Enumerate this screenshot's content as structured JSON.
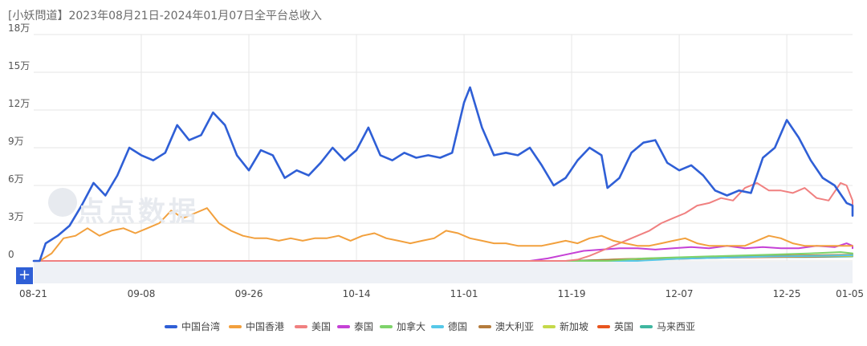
{
  "title": "[小妖問道】2023年08月21日-2024年01月07日全平台总收入",
  "watermark": "点点数据",
  "zoom_button": "+",
  "colors": {
    "grid": "#e6e6e6",
    "navigator_bg": "#eef1f6"
  },
  "chart_data": {
    "type": "line",
    "title": "[小妖問道】2023年08月21日-2024年01月07日全平台总收入",
    "xlabel": "",
    "ylabel": "",
    "x_start": "2023-08-21",
    "x_end": "2024-01-05",
    "ylim": [
      0,
      180000
    ],
    "y_ticks": [
      0,
      30000,
      60000,
      90000,
      120000,
      150000,
      180000
    ],
    "y_tick_labels": [
      "0",
      "3万",
      "6万",
      "9万",
      "12万",
      "15万",
      "18万"
    ],
    "x_ticks": [
      "2023-08-21",
      "2023-09-08",
      "2023-09-26",
      "2023-10-14",
      "2023-11-01",
      "2023-11-19",
      "2023-12-07",
      "2023-12-25",
      "2024-01-05"
    ],
    "x_tick_labels": [
      "08-21",
      "09-08",
      "09-26",
      "10-14",
      "11-01",
      "11-19",
      "12-07",
      "12-25",
      "01-05"
    ],
    "grid": true,
    "legend_position": "bottom",
    "series": [
      {
        "name": "中国台湾",
        "color": "#2f5fd6",
        "points": [
          [
            "2023-08-21",
            0
          ],
          [
            "2023-08-22",
            0
          ],
          [
            "2023-08-23",
            14000
          ],
          [
            "2023-08-25",
            20000
          ],
          [
            "2023-08-27",
            28000
          ],
          [
            "2023-08-29",
            44000
          ],
          [
            "2023-08-31",
            62000
          ],
          [
            "2023-09-02",
            52000
          ],
          [
            "2023-09-04",
            68000
          ],
          [
            "2023-09-06",
            90000
          ],
          [
            "2023-09-08",
            84000
          ],
          [
            "2023-09-10",
            80000
          ],
          [
            "2023-09-12",
            86000
          ],
          [
            "2023-09-14",
            108000
          ],
          [
            "2023-09-16",
            96000
          ],
          [
            "2023-09-18",
            100000
          ],
          [
            "2023-09-20",
            118000
          ],
          [
            "2023-09-22",
            108000
          ],
          [
            "2023-09-24",
            84000
          ],
          [
            "2023-09-26",
            72000
          ],
          [
            "2023-09-28",
            88000
          ],
          [
            "2023-09-30",
            84000
          ],
          [
            "2023-10-02",
            66000
          ],
          [
            "2023-10-04",
            72000
          ],
          [
            "2023-10-06",
            68000
          ],
          [
            "2023-10-08",
            78000
          ],
          [
            "2023-10-10",
            90000
          ],
          [
            "2023-10-12",
            80000
          ],
          [
            "2023-10-14",
            88000
          ],
          [
            "2023-10-16",
            106000
          ],
          [
            "2023-10-18",
            84000
          ],
          [
            "2023-10-20",
            80000
          ],
          [
            "2023-10-22",
            86000
          ],
          [
            "2023-10-24",
            82000
          ],
          [
            "2023-10-26",
            84000
          ],
          [
            "2023-10-28",
            82000
          ],
          [
            "2023-10-30",
            86000
          ],
          [
            "2023-11-01",
            126000
          ],
          [
            "2023-11-02",
            138000
          ],
          [
            "2023-11-04",
            106000
          ],
          [
            "2023-11-06",
            84000
          ],
          [
            "2023-11-08",
            86000
          ],
          [
            "2023-11-10",
            84000
          ],
          [
            "2023-11-12",
            90000
          ],
          [
            "2023-11-14",
            76000
          ],
          [
            "2023-11-16",
            60000
          ],
          [
            "2023-11-18",
            66000
          ],
          [
            "2023-11-20",
            80000
          ],
          [
            "2023-11-22",
            90000
          ],
          [
            "2023-11-24",
            84000
          ],
          [
            "2023-11-25",
            58000
          ],
          [
            "2023-11-27",
            66000
          ],
          [
            "2023-11-29",
            86000
          ],
          [
            "2023-12-01",
            94000
          ],
          [
            "2023-12-03",
            96000
          ],
          [
            "2023-12-05",
            78000
          ],
          [
            "2023-12-07",
            72000
          ],
          [
            "2023-12-09",
            76000
          ],
          [
            "2023-12-11",
            68000
          ],
          [
            "2023-12-13",
            56000
          ],
          [
            "2023-12-15",
            52000
          ],
          [
            "2023-12-17",
            56000
          ],
          [
            "2023-12-19",
            54000
          ],
          [
            "2023-12-21",
            82000
          ],
          [
            "2023-12-23",
            90000
          ],
          [
            "2023-12-25",
            112000
          ],
          [
            "2023-12-27",
            98000
          ],
          [
            "2023-12-29",
            80000
          ],
          [
            "2023-12-31",
            66000
          ],
          [
            "2024-01-02",
            60000
          ],
          [
            "2024-01-04",
            46000
          ],
          [
            "2024-01-05",
            44000
          ],
          [
            "2024-01-06",
            42000
          ],
          [
            "2024-01-07",
            36000
          ]
        ]
      },
      {
        "name": "中国香港",
        "color": "#f2a03d",
        "points": [
          [
            "2023-08-21",
            0
          ],
          [
            "2023-08-22",
            0
          ],
          [
            "2023-08-24",
            6000
          ],
          [
            "2023-08-26",
            18000
          ],
          [
            "2023-08-28",
            20000
          ],
          [
            "2023-08-30",
            26000
          ],
          [
            "2023-09-01",
            20000
          ],
          [
            "2023-09-03",
            24000
          ],
          [
            "2023-09-05",
            26000
          ],
          [
            "2023-09-07",
            22000
          ],
          [
            "2023-09-09",
            26000
          ],
          [
            "2023-09-11",
            30000
          ],
          [
            "2023-09-13",
            40000
          ],
          [
            "2023-09-15",
            34000
          ],
          [
            "2023-09-17",
            38000
          ],
          [
            "2023-09-19",
            42000
          ],
          [
            "2023-09-21",
            30000
          ],
          [
            "2023-09-23",
            24000
          ],
          [
            "2023-09-25",
            20000
          ],
          [
            "2023-09-27",
            18000
          ],
          [
            "2023-09-29",
            18000
          ],
          [
            "2023-10-01",
            16000
          ],
          [
            "2023-10-03",
            18000
          ],
          [
            "2023-10-05",
            16000
          ],
          [
            "2023-10-07",
            18000
          ],
          [
            "2023-10-09",
            18000
          ],
          [
            "2023-10-11",
            20000
          ],
          [
            "2023-10-13",
            16000
          ],
          [
            "2023-10-15",
            20000
          ],
          [
            "2023-10-17",
            22000
          ],
          [
            "2023-10-19",
            18000
          ],
          [
            "2023-10-21",
            16000
          ],
          [
            "2023-10-23",
            14000
          ],
          [
            "2023-10-25",
            16000
          ],
          [
            "2023-10-27",
            18000
          ],
          [
            "2023-10-29",
            24000
          ],
          [
            "2023-10-31",
            22000
          ],
          [
            "2023-11-02",
            18000
          ],
          [
            "2023-11-04",
            16000
          ],
          [
            "2023-11-06",
            14000
          ],
          [
            "2023-11-08",
            14000
          ],
          [
            "2023-11-10",
            12000
          ],
          [
            "2023-11-12",
            12000
          ],
          [
            "2023-11-14",
            12000
          ],
          [
            "2023-11-16",
            14000
          ],
          [
            "2023-11-18",
            16000
          ],
          [
            "2023-11-20",
            14000
          ],
          [
            "2023-11-22",
            18000
          ],
          [
            "2023-11-24",
            20000
          ],
          [
            "2023-11-26",
            16000
          ],
          [
            "2023-11-28",
            14000
          ],
          [
            "2023-11-30",
            12000
          ],
          [
            "2023-12-02",
            12000
          ],
          [
            "2023-12-04",
            14000
          ],
          [
            "2023-12-06",
            16000
          ],
          [
            "2023-12-08",
            18000
          ],
          [
            "2023-12-10",
            14000
          ],
          [
            "2023-12-12",
            12000
          ],
          [
            "2023-12-14",
            12000
          ],
          [
            "2023-12-16",
            12000
          ],
          [
            "2023-12-18",
            12000
          ],
          [
            "2023-12-20",
            16000
          ],
          [
            "2023-12-22",
            20000
          ],
          [
            "2023-12-24",
            18000
          ],
          [
            "2023-12-26",
            14000
          ],
          [
            "2023-12-28",
            12000
          ],
          [
            "2023-12-30",
            12000
          ],
          [
            "2024-01-01",
            12000
          ],
          [
            "2024-01-03",
            12000
          ],
          [
            "2024-01-05",
            12000
          ],
          [
            "2024-01-07",
            12000
          ]
        ]
      },
      {
        "name": "美国",
        "color": "#f08080",
        "points": [
          [
            "2023-08-21",
            0
          ],
          [
            "2023-11-18",
            0
          ],
          [
            "2023-11-20",
            1000
          ],
          [
            "2023-11-22",
            4000
          ],
          [
            "2023-11-24",
            8000
          ],
          [
            "2023-11-26",
            12000
          ],
          [
            "2023-11-28",
            16000
          ],
          [
            "2023-11-30",
            20000
          ],
          [
            "2023-12-02",
            24000
          ],
          [
            "2023-12-04",
            30000
          ],
          [
            "2023-12-06",
            34000
          ],
          [
            "2023-12-08",
            38000
          ],
          [
            "2023-12-10",
            44000
          ],
          [
            "2023-12-12",
            46000
          ],
          [
            "2023-12-14",
            50000
          ],
          [
            "2023-12-16",
            48000
          ],
          [
            "2023-12-18",
            58000
          ],
          [
            "2023-12-20",
            62000
          ],
          [
            "2023-12-22",
            56000
          ],
          [
            "2023-12-24",
            56000
          ],
          [
            "2023-12-26",
            54000
          ],
          [
            "2023-12-28",
            58000
          ],
          [
            "2023-12-30",
            50000
          ],
          [
            "2024-01-01",
            48000
          ],
          [
            "2024-01-03",
            62000
          ],
          [
            "2024-01-04",
            60000
          ],
          [
            "2024-01-05",
            48000
          ],
          [
            "2024-01-06",
            44000
          ],
          [
            "2024-01-07",
            48000
          ]
        ]
      },
      {
        "name": "泰国",
        "color": "#c541d6",
        "points": [
          [
            "2023-08-21",
            0
          ],
          [
            "2023-11-12",
            0
          ],
          [
            "2023-11-15",
            2000
          ],
          [
            "2023-11-18",
            5000
          ],
          [
            "2023-11-21",
            8000
          ],
          [
            "2023-11-24",
            9000
          ],
          [
            "2023-11-27",
            10000
          ],
          [
            "2023-11-30",
            10000
          ],
          [
            "2023-12-03",
            9000
          ],
          [
            "2023-12-06",
            10000
          ],
          [
            "2023-12-09",
            11000
          ],
          [
            "2023-12-12",
            10000
          ],
          [
            "2023-12-15",
            12000
          ],
          [
            "2023-12-18",
            10000
          ],
          [
            "2023-12-21",
            11000
          ],
          [
            "2023-12-24",
            10000
          ],
          [
            "2023-12-27",
            10000
          ],
          [
            "2023-12-30",
            12000
          ],
          [
            "2024-01-02",
            11000
          ],
          [
            "2024-01-04",
            14000
          ],
          [
            "2024-01-05",
            12000
          ],
          [
            "2024-01-07",
            10000
          ]
        ]
      },
      {
        "name": "加拿大",
        "color": "#7ed36a",
        "points": [
          [
            "2023-08-21",
            0
          ],
          [
            "2023-11-25",
            0
          ],
          [
            "2023-12-01",
            2000
          ],
          [
            "2023-12-08",
            3000
          ],
          [
            "2023-12-15",
            4000
          ],
          [
            "2023-12-22",
            5000
          ],
          [
            "2023-12-29",
            6000
          ],
          [
            "2024-01-03",
            7000
          ],
          [
            "2024-01-07",
            6000
          ]
        ]
      },
      {
        "name": "德国",
        "color": "#56c8e8",
        "points": [
          [
            "2023-08-21",
            0
          ],
          [
            "2023-11-30",
            0
          ],
          [
            "2023-12-06",
            1500
          ],
          [
            "2023-12-14",
            2500
          ],
          [
            "2023-12-22",
            3500
          ],
          [
            "2023-12-30",
            4000
          ],
          [
            "2024-01-07",
            4500
          ]
        ]
      },
      {
        "name": "澳大利亚",
        "color": "#b47b3c",
        "points": [
          [
            "2023-08-21",
            0
          ],
          [
            "2023-11-20",
            0
          ],
          [
            "2023-11-28",
            1500
          ],
          [
            "2023-12-06",
            2500
          ],
          [
            "2023-12-14",
            3500
          ],
          [
            "2023-12-22",
            4000
          ],
          [
            "2023-12-30",
            4500
          ],
          [
            "2024-01-07",
            5000
          ]
        ]
      },
      {
        "name": "新加坡",
        "color": "#c5d94a",
        "points": [
          [
            "2023-08-21",
            0
          ],
          [
            "2023-11-22",
            0
          ],
          [
            "2023-11-30",
            1500
          ],
          [
            "2023-12-08",
            2500
          ],
          [
            "2023-12-16",
            3000
          ],
          [
            "2023-12-24",
            3500
          ],
          [
            "2024-01-02",
            4000
          ],
          [
            "2024-01-07",
            4000
          ]
        ]
      },
      {
        "name": "英国",
        "color": "#e8551e",
        "points": [
          [
            "2023-08-21",
            0
          ],
          [
            "2023-11-20",
            0
          ],
          [
            "2023-11-28",
            1000
          ],
          [
            "2023-12-06",
            1500
          ],
          [
            "2023-12-14",
            2500
          ],
          [
            "2023-12-22",
            3000
          ],
          [
            "2023-12-30",
            3500
          ],
          [
            "2024-01-07",
            4000
          ]
        ]
      },
      {
        "name": "马来西亚",
        "color": "#3fb6a0",
        "points": [
          [
            "2023-08-21",
            0
          ],
          [
            "2023-11-18",
            0
          ],
          [
            "2023-11-26",
            1000
          ],
          [
            "2023-12-04",
            2000
          ],
          [
            "2023-12-12",
            2500
          ],
          [
            "2023-12-20",
            3000
          ],
          [
            "2023-12-28",
            3000
          ],
          [
            "2024-01-07",
            3500
          ]
        ]
      }
    ]
  }
}
